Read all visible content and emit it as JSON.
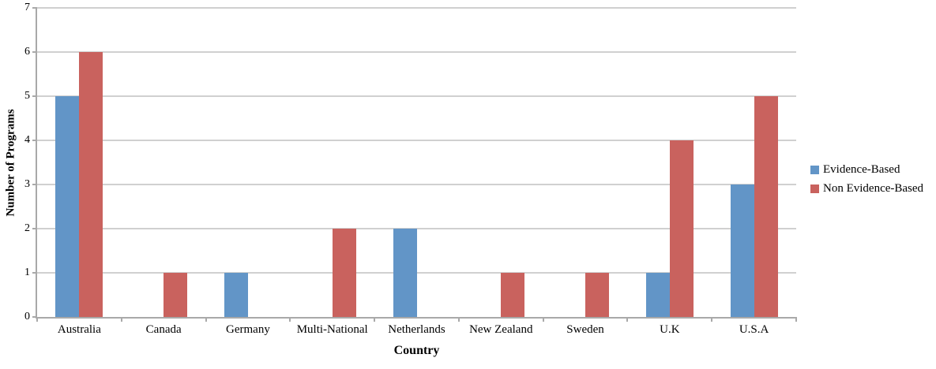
{
  "chart_data": {
    "type": "bar",
    "title": "",
    "xlabel": "Country",
    "ylabel": "Number of Programs",
    "categories": [
      "Australia",
      "Canada",
      "Germany",
      "Multi-National",
      "Netherlands",
      "New Zealand",
      "Sweden",
      "U.K",
      "U.S.A"
    ],
    "series": [
      {
        "name": "Evidence-Based",
        "color": "#6295C7",
        "values": [
          5,
          0,
          1,
          0,
          2,
          0,
          0,
          1,
          3
        ]
      },
      {
        "name": "Non Evidence-Based",
        "color": "#C9625E",
        "values": [
          6,
          1,
          0,
          2,
          0,
          1,
          1,
          4,
          5
        ]
      }
    ],
    "ylim": [
      0,
      7
    ],
    "yticks": [
      0,
      1,
      2,
      3,
      4,
      5,
      6,
      7
    ],
    "grid": true,
    "legend_position": "right",
    "grid_color": "#D0D0D0",
    "axis_color": "#A9A9A9",
    "text_color": "#000000",
    "background": "#FFFFFF"
  }
}
